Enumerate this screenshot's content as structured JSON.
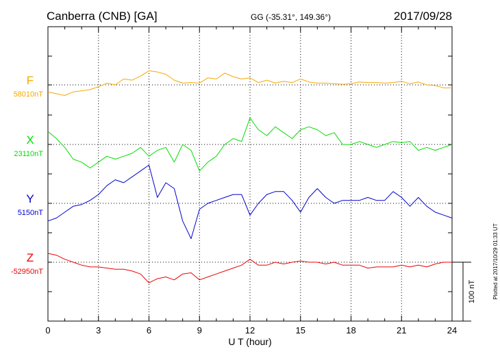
{
  "chart_data": {
    "type": "line",
    "title": "Canberra (CNB)  [GA]",
    "subtitle": "GG (-35.31°, 149.36°)",
    "date": "2017/09/28",
    "xlabel": "U T (hour)",
    "xlim": [
      0,
      24
    ],
    "x_ticks": [
      "0",
      "3",
      "6",
      "9",
      "12",
      "15",
      "18",
      "21",
      "24"
    ],
    "grid": true,
    "scale_bar_label": "100 nT",
    "scale_bar_nT": 100,
    "plotted_note": "Plotted at 2017/10/29 01:33 UT",
    "series": [
      {
        "name": "F",
        "baseline_label": "58010nT",
        "baseline_nT": 58010,
        "color": "#f5a800",
        "x": [
          0,
          0.5,
          1,
          1.5,
          2,
          2.5,
          3,
          3.5,
          4,
          4.5,
          5,
          5.5,
          6,
          6.5,
          7,
          7.5,
          8,
          8.5,
          9,
          9.5,
          10,
          10.5,
          11,
          11.5,
          12,
          12.5,
          13,
          13.5,
          14,
          14.5,
          15,
          15.5,
          16,
          16.5,
          17,
          17.5,
          18,
          18.5,
          19,
          19.5,
          20,
          20.5,
          21,
          21.5,
          22,
          22.5,
          23,
          23.5,
          24
        ],
        "y": [
          -12,
          -15,
          -18,
          -12,
          -10,
          -8,
          -3,
          3,
          0,
          10,
          8,
          15,
          24,
          22,
          18,
          8,
          3,
          4,
          3,
          12,
          10,
          20,
          14,
          10,
          12,
          4,
          8,
          3,
          6,
          4,
          10,
          5,
          3,
          3,
          2,
          1,
          2,
          5,
          4,
          4,
          3,
          4,
          6,
          2,
          5,
          0,
          -1,
          -5,
          -5
        ]
      },
      {
        "name": "X",
        "baseline_label": "23110nT",
        "baseline_nT": 23110,
        "color": "#00dd00",
        "x": [
          0,
          0.5,
          1,
          1.5,
          2,
          2.5,
          3,
          3.5,
          4,
          4.5,
          5,
          5.5,
          6,
          6.5,
          7,
          7.5,
          8,
          8.5,
          9,
          9.5,
          10,
          10.5,
          11,
          11.5,
          12,
          12.5,
          13,
          13.5,
          14,
          14.5,
          15,
          15.5,
          16,
          16.5,
          17,
          17.5,
          18,
          18.5,
          19,
          19.5,
          20,
          20.5,
          21,
          21.5,
          22,
          22.5,
          23,
          23.5,
          24
        ],
        "y": [
          22,
          10,
          -5,
          -25,
          -30,
          -40,
          -30,
          -20,
          -25,
          -20,
          -15,
          -5,
          -20,
          -10,
          -5,
          -30,
          0,
          -10,
          -45,
          -30,
          -20,
          0,
          10,
          5,
          45,
          25,
          15,
          30,
          20,
          10,
          25,
          30,
          25,
          15,
          20,
          0,
          0,
          5,
          0,
          -5,
          0,
          5,
          3,
          5,
          -10,
          -5,
          -10,
          -5,
          0
        ]
      },
      {
        "name": "Y",
        "baseline_label": "5150nT",
        "baseline_nT": 5150,
        "color": "#0000cc",
        "x": [
          0,
          0.5,
          1,
          1.5,
          2,
          2.5,
          3,
          3.5,
          4,
          4.5,
          5,
          5.5,
          6,
          6.5,
          7,
          7.5,
          8,
          8.5,
          9,
          9.5,
          10,
          10.5,
          11,
          11.5,
          12,
          12.5,
          13,
          13.5,
          14,
          14.5,
          15,
          15.5,
          16,
          16.5,
          17,
          17.5,
          18,
          18.5,
          19,
          19.5,
          20,
          20.5,
          21,
          21.5,
          22,
          22.5,
          23,
          23.5,
          24
        ],
        "y": [
          -30,
          -25,
          -15,
          -5,
          -2,
          5,
          15,
          30,
          40,
          35,
          45,
          55,
          65,
          10,
          35,
          25,
          -30,
          -60,
          -10,
          0,
          5,
          10,
          15,
          15,
          -20,
          0,
          15,
          20,
          20,
          5,
          -15,
          10,
          25,
          10,
          0,
          5,
          5,
          5,
          10,
          5,
          5,
          20,
          10,
          -5,
          10,
          -5,
          -15,
          -20,
          -25
        ]
      },
      {
        "name": "Z",
        "baseline_label": "-52950nT",
        "baseline_nT": -52950,
        "color": "#ee0000",
        "x": [
          0,
          0.5,
          1,
          1.5,
          2,
          2.5,
          3,
          3.5,
          4,
          4.5,
          5,
          5.5,
          6,
          6.5,
          7,
          7.5,
          8,
          8.5,
          9,
          9.5,
          10,
          10.5,
          11,
          11.5,
          12,
          12.5,
          13,
          13.5,
          14,
          14.5,
          15,
          15.5,
          16,
          16.5,
          17,
          17.5,
          18,
          18.5,
          19,
          19.5,
          20,
          20.5,
          21,
          21.5,
          22,
          22.5,
          23,
          23.5,
          24
        ],
        "y": [
          15,
          12,
          5,
          0,
          -5,
          -8,
          -8,
          -10,
          -12,
          -12,
          -15,
          -20,
          -35,
          -28,
          -25,
          -30,
          -20,
          -18,
          -30,
          -25,
          -20,
          -15,
          -10,
          -5,
          5,
          -5,
          -5,
          0,
          -3,
          0,
          2,
          0,
          0,
          -3,
          0,
          -5,
          -5,
          -5,
          -10,
          -8,
          -8,
          -8,
          -5,
          -8,
          -5,
          -8,
          -3,
          0,
          0
        ]
      }
    ]
  }
}
